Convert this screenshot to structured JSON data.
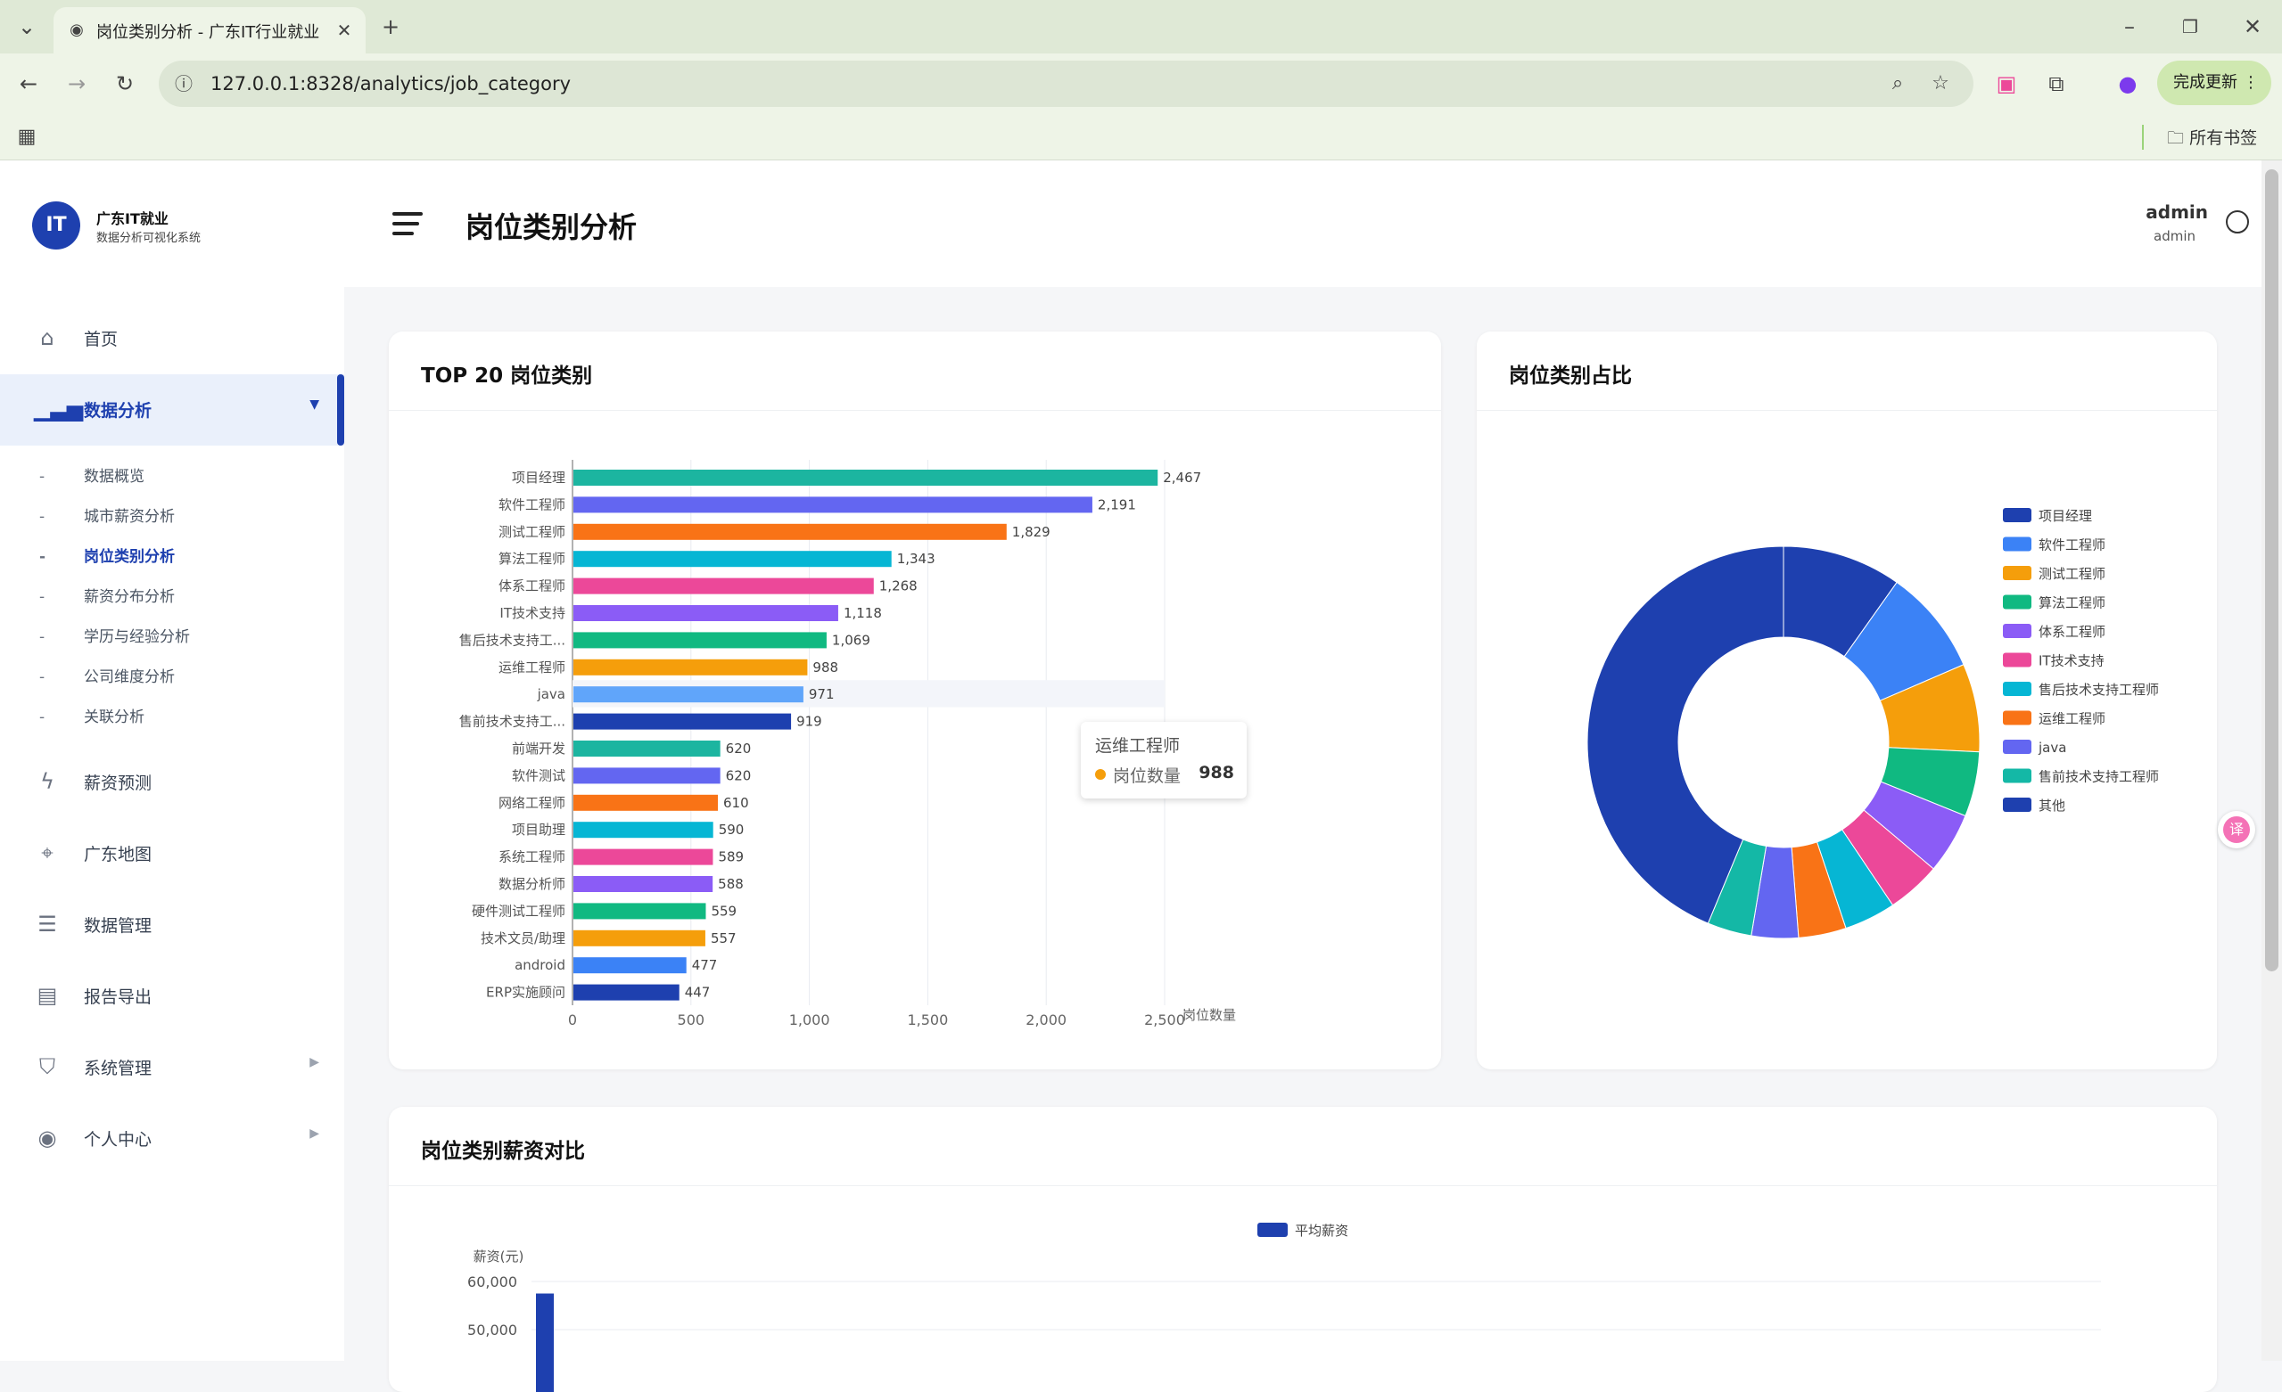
{
  "browser": {
    "tab_title": "岗位类别分析 - 广东IT行业就业",
    "url": "127.0.0.1:8328/analytics/job_category",
    "update_label": "完成更新",
    "bookmarks_label": "所有书签"
  },
  "brand": {
    "logo": "IT",
    "name": "广东IT就业",
    "subtitle": "数据分析可视化系统"
  },
  "nav": {
    "home": "首页",
    "analysis": "数据分析",
    "sub_items": [
      "数据概览",
      "城市薪资分析",
      "岗位类别分析",
      "薪资分布分析",
      "学历与经验分析",
      "公司维度分析",
      "关联分析"
    ],
    "predict": "薪资预测",
    "map": "广东地图",
    "data_mgmt": "数据管理",
    "report": "报告导出",
    "system": "系统管理",
    "personal": "个人中心"
  },
  "header": {
    "title": "岗位类别分析",
    "user_name": "admin",
    "user_role": "admin"
  },
  "cards": {
    "top20_title": "TOP 20 岗位类别",
    "share_title": "岗位类别占比",
    "salary_title": "岗位类别薪资对比"
  },
  "tooltip": {
    "title": "运维工程师",
    "series": "岗位数量",
    "value": "988"
  },
  "colors": {
    "primary": "#1e40af",
    "palette": [
      "#1cb5a0",
      "#6366f1",
      "#f97316",
      "#06b6d4",
      "#ec4899",
      "#8b5cf6",
      "#10b981",
      "#f59e0b",
      "#60a5fa",
      "#1e40af"
    ]
  },
  "chart_data": [
    {
      "type": "bar",
      "orientation": "horizontal",
      "title": "TOP 20 岗位类别",
      "xlabel": "岗位数量",
      "xlim": [
        0,
        2500
      ],
      "xticks": [
        "0",
        "500",
        "1,000",
        "1,500",
        "2,000",
        "2,500"
      ],
      "categories": [
        "项目经理",
        "软件工程师",
        "测试工程师",
        "算法工程师",
        "体系工程师",
        "IT技术支持",
        "售后技术支持工...",
        "运维工程师",
        "java",
        "售前技术支持工...",
        "前端开发",
        "软件测试",
        "网络工程师",
        "项目助理",
        "系统工程师",
        "数据分析师",
        "硬件测试工程师",
        "技术文员/助理",
        "android",
        "ERP实施顾问"
      ],
      "values": [
        2467,
        2191,
        1829,
        1343,
        1268,
        1118,
        1069,
        988,
        971,
        919,
        620,
        620,
        610,
        590,
        589,
        588,
        559,
        557,
        477,
        447
      ],
      "value_labels": [
        "2,467",
        "2,191",
        "1,829",
        "1,343",
        "1,268",
        "1,118",
        "1,069",
        "988",
        "971",
        "919",
        "620",
        "620",
        "610",
        "590",
        "589",
        "588",
        "559",
        "557",
        "477",
        "447"
      ],
      "bar_colors": [
        "#1cb5a0",
        "#6366f1",
        "#f97316",
        "#06b6d4",
        "#ec4899",
        "#8b5cf6",
        "#10b981",
        "#f59e0b",
        "#60a5fa",
        "#1e40af",
        "#1cb5a0",
        "#6366f1",
        "#f97316",
        "#06b6d4",
        "#ec4899",
        "#8b5cf6",
        "#10b981",
        "#f59e0b",
        "#3b82f6",
        "#1e40af"
      ],
      "highlighted": "java",
      "grid": true
    },
    {
      "type": "pie",
      "variant": "donut",
      "title": "岗位类别占比",
      "legend_position": "right",
      "labels": [
        "项目经理",
        "软件工程师",
        "测试工程师",
        "算法工程师",
        "体系工程师",
        "IT技术支持",
        "售后技术支持工程师",
        "运维工程师",
        "java",
        "售前技术支持工程师",
        "其他"
      ],
      "values": [
        2467,
        2191,
        1829,
        1343,
        1268,
        1118,
        1069,
        988,
        971,
        919,
        11000
      ],
      "colors": [
        "#1e40af",
        "#3b82f6",
        "#f59e0b",
        "#10b981",
        "#8b5cf6",
        "#ec4899",
        "#06b6d4",
        "#f97316",
        "#6366f1",
        "#14b8a6",
        "#1e40af"
      ]
    },
    {
      "type": "bar",
      "title": "岗位类别薪资对比",
      "ylabel": "薪资(元)",
      "series": [
        {
          "name": "平均薪资",
          "values": [
            57500
          ]
        }
      ],
      "yticks": [
        "60,000",
        "50,000"
      ],
      "ylim": [
        0,
        60000
      ]
    }
  ]
}
